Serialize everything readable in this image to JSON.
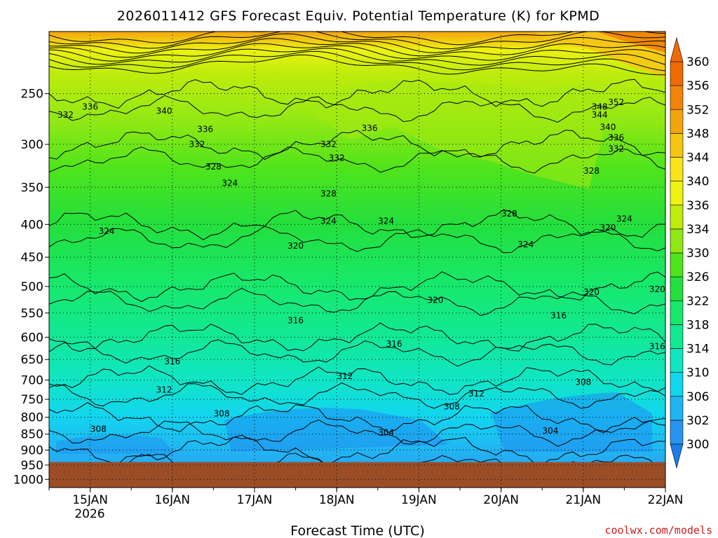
{
  "chart_data": {
    "type": "heatmap",
    "title": "2026011412 GFS Forecast Equiv. Potential Temperature (K) for KPMD",
    "xlabel": "Forecast Time (UTC)",
    "ylabel": "",
    "credit": "coolwx.com/models",
    "x_ticks": [
      "15JAN",
      "16JAN",
      "17JAN",
      "18JAN",
      "19JAN",
      "20JAN",
      "21JAN",
      "22JAN"
    ],
    "x_year_label": "2026",
    "y_ticks": [
      "250",
      "300",
      "350",
      "400",
      "450",
      "500",
      "550",
      "600",
      "650",
      "700",
      "750",
      "800",
      "850",
      "900",
      "950",
      "1000"
    ],
    "y_scale": "log-pressure",
    "ylim": [
      1030,
      200
    ],
    "grid": true,
    "x_range_days": [
      14.5,
      22.0
    ],
    "colorbar_levels": [
      "300",
      "302",
      "306",
      "310",
      "314",
      "318",
      "322",
      "326",
      "330",
      "334",
      "336",
      "340",
      "344",
      "348",
      "352",
      "356",
      "360"
    ],
    "colorbar_colors": [
      "#1c7ce8",
      "#2b94f0",
      "#22b4f2",
      "#12d6ee",
      "#10e6c2",
      "#12e892",
      "#18e86a",
      "#24df3c",
      "#4fe41c",
      "#8fe814",
      "#c0ec0c",
      "#eef211",
      "#f8e41a",
      "#f6c514",
      "#f4a40f",
      "#f08308",
      "#ee6a04"
    ],
    "ground": {
      "pressure_top": 940,
      "color": "#9b4e26"
    },
    "contour_labels": [
      "332",
      "336",
      "340",
      "336",
      "332",
      "332",
      "328",
      "328",
      "336",
      "332",
      "348",
      "352",
      "344",
      "340",
      "336",
      "332",
      "324",
      "324",
      "324",
      "324",
      "320",
      "328",
      "324",
      "328",
      "320",
      "316",
      "320",
      "316",
      "316",
      "320",
      "320",
      "324",
      "316",
      "312",
      "312",
      "316",
      "312",
      "308",
      "308",
      "308",
      "304",
      "304",
      "308"
    ],
    "profiles_sample": [
      {
        "pressure": 250,
        "theta_e": 332
      },
      {
        "pressure": 300,
        "theta_e": 328
      },
      {
        "pressure": 400,
        "theta_e": 324
      },
      {
        "pressure": 500,
        "theta_e": 320
      },
      {
        "pressure": 600,
        "theta_e": 316
      },
      {
        "pressure": 700,
        "theta_e": 312
      },
      {
        "pressure": 800,
        "theta_e": 308
      },
      {
        "pressure": 900,
        "theta_e": 304
      }
    ]
  }
}
